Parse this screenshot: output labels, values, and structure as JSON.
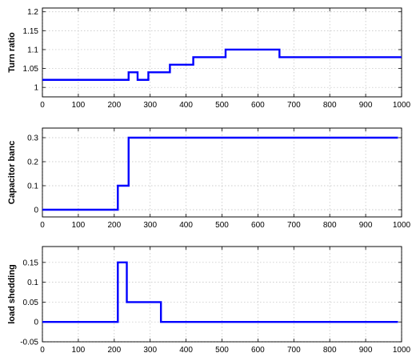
{
  "chart_data": [
    {
      "type": "line",
      "ylabel": "Turn ratio",
      "xlim": [
        0,
        1000
      ],
      "ylim": [
        0.975,
        1.21
      ],
      "xticks": [
        0,
        100,
        200,
        300,
        400,
        500,
        600,
        700,
        800,
        900,
        1000
      ],
      "yticks": [
        1,
        1.05,
        1.1,
        1.15,
        1.2
      ],
      "ytick_labels": [
        "1",
        "1.05",
        "1.1",
        "1.15",
        "1.2"
      ],
      "grid": true,
      "color": "#0000ff",
      "series": [
        {
          "x": [
            0,
            240,
            240,
            265,
            265,
            295,
            295,
            355,
            355,
            420,
            420,
            510,
            510,
            660,
            660,
            1000
          ],
          "y": [
            1.02,
            1.02,
            1.04,
            1.04,
            1.02,
            1.02,
            1.04,
            1.04,
            1.06,
            1.06,
            1.08,
            1.08,
            1.1,
            1.1,
            1.08,
            1.08
          ]
        }
      ]
    },
    {
      "type": "line",
      "ylabel": "Capacitor banc",
      "xlim": [
        0,
        1000
      ],
      "ylim": [
        -0.03,
        0.34
      ],
      "xticks": [
        0,
        100,
        200,
        300,
        400,
        500,
        600,
        700,
        800,
        900,
        1000
      ],
      "yticks": [
        0,
        0.1,
        0.2,
        0.3
      ],
      "ytick_labels": [
        "0",
        "0.1",
        "0.2",
        "0.3"
      ],
      "grid": true,
      "color": "#0000ff",
      "series": [
        {
          "x": [
            0,
            210,
            210,
            240,
            240,
            990
          ],
          "y": [
            0,
            0,
            0.1,
            0.1,
            0.3,
            0.3
          ]
        }
      ]
    },
    {
      "type": "line",
      "ylabel": "load shedding",
      "xlim": [
        0,
        1000
      ],
      "ylim": [
        -0.05,
        0.19
      ],
      "xticks": [
        0,
        100,
        200,
        300,
        400,
        500,
        600,
        700,
        800,
        900,
        1000
      ],
      "yticks": [
        -0.05,
        0,
        0.05,
        0.1,
        0.15
      ],
      "ytick_labels": [
        "-0.05",
        "0",
        "0.05",
        "0.1",
        "0.15"
      ],
      "grid": true,
      "color": "#0000ff",
      "series": [
        {
          "x": [
            0,
            210,
            210,
            235,
            235,
            330,
            330,
            990
          ],
          "y": [
            0,
            0,
            0.15,
            0.15,
            0.05,
            0.05,
            0,
            0
          ]
        }
      ]
    }
  ]
}
